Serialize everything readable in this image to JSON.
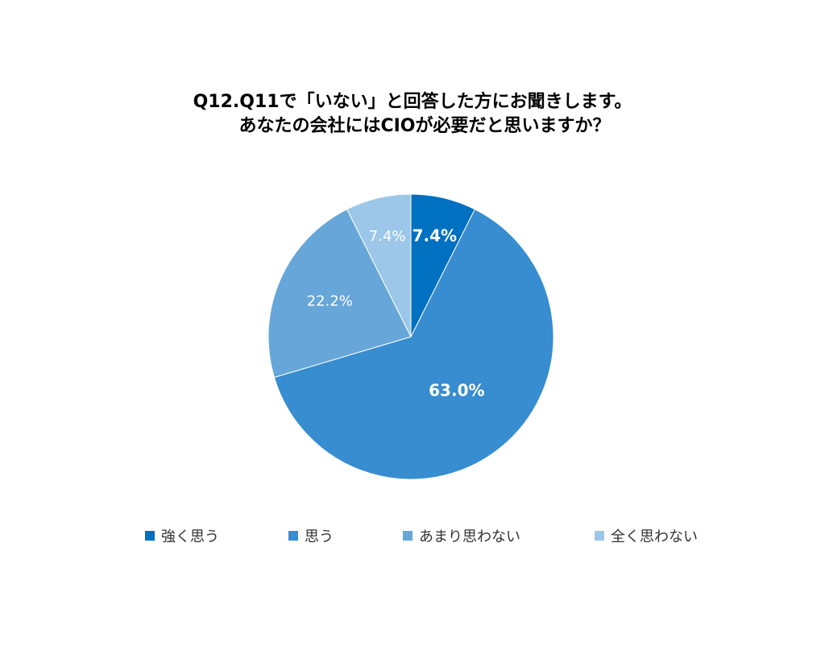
{
  "chart_data": {
    "type": "pie",
    "title_line1": "Q12.Q11で「いない」と回答した方にお聞きします。",
    "title_line2": "あなたの会社にはCIOが必要だと思いますか？",
    "categories": [
      "強く思う",
      "思う",
      "あまり思わない",
      "全く思わない"
    ],
    "values": [
      7.4,
      63.0,
      22.2,
      7.4
    ],
    "labels": [
      "7.4%",
      "63.0%",
      "22.2%",
      "7.4%"
    ],
    "colors": [
      "#0070c0",
      "#378dcf",
      "#66a6d9",
      "#9cc7e8"
    ],
    "label_colors": [
      "#ffffff",
      "#ffffff",
      "#ffffff",
      "#ffffff"
    ],
    "label_bold": [
      true,
      true,
      false,
      false
    ],
    "legend_position": "bottom"
  }
}
